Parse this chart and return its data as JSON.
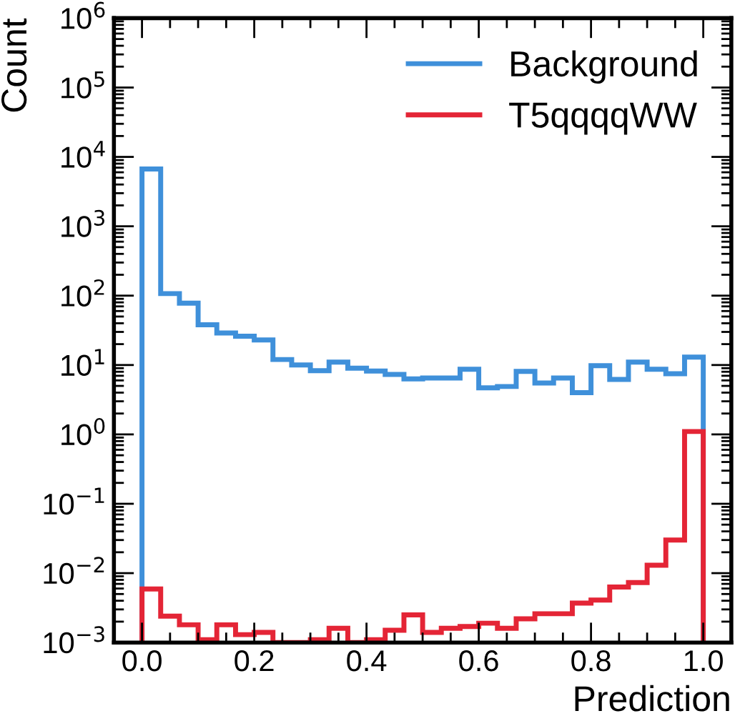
{
  "chart_data": {
    "type": "histogram",
    "xlabel": "Prediction",
    "ylabel": "Count",
    "bins": [
      0,
      0.0333,
      0.0667,
      0.1,
      0.1333,
      0.1667,
      0.2,
      0.2333,
      0.2667,
      0.3,
      0.3333,
      0.3667,
      0.4,
      0.4333,
      0.4667,
      0.5,
      0.5333,
      0.5667,
      0.6,
      0.6333,
      0.6667,
      0.7,
      0.7333,
      0.7667,
      0.8,
      0.8333,
      0.8667,
      0.9,
      0.9333,
      0.9667,
      1
    ],
    "series": [
      {
        "name": "Background",
        "color": "#3f90da",
        "values": [
          6700,
          107,
          78,
          38,
          29,
          26,
          23,
          12,
          10,
          8.3,
          11,
          9,
          8.2,
          7.3,
          6.3,
          6.5,
          6.5,
          8.7,
          4.7,
          4.9,
          8.1,
          5.5,
          6.5,
          4.0,
          9.8,
          6.2,
          11,
          8.7,
          7.5,
          13
        ]
      },
      {
        "name": "T5qqqqWW",
        "color": "#e42536",
        "values": [
          0.0059,
          0.0024,
          0.0018,
          0.0011,
          0.0018,
          0.0013,
          0.0014,
          0.001,
          0.001,
          0.0011,
          0.0016,
          0.001,
          0.0011,
          0.0015,
          0.0025,
          0.0014,
          0.0016,
          0.0017,
          0.0019,
          0.0016,
          0.0022,
          0.0026,
          0.0026,
          0.0037,
          0.0041,
          0.0063,
          0.0073,
          0.013,
          0.03,
          1.1
        ]
      }
    ],
    "log": "y",
    "xlim": [
      -0.05,
      1.05
    ],
    "xticks": [
      {
        "value": 0,
        "label": "0.0"
      },
      0.2,
      0.4,
      0.6,
      0.8,
      {
        "value": 1,
        "label": "1.0"
      }
    ],
    "ylim": [
      0.001,
      1000000
    ],
    "yticks": [
      {
        "value": 0.001,
        "label": "10$^{−3}$"
      },
      {
        "value": 0.01,
        "label": "10$^{−2}$"
      },
      {
        "value": 0.1,
        "label": "10$^{−1}$"
      },
      {
        "value": 1,
        "label": "10$^{0}$"
      },
      {
        "value": 10,
        "label": "10$^{1}$"
      },
      {
        "value": 100,
        "label": "10$^{2}$"
      },
      {
        "value": 1000,
        "label": "10$^{3}$"
      },
      {
        "value": 10000,
        "label": "10$^{4}$"
      },
      {
        "value": 100000,
        "label": "10$^{5}$"
      },
      {
        "value": 1000000,
        "label": "10$^{6}$"
      }
    ],
    "legend": "top right",
    "grid": false
  }
}
